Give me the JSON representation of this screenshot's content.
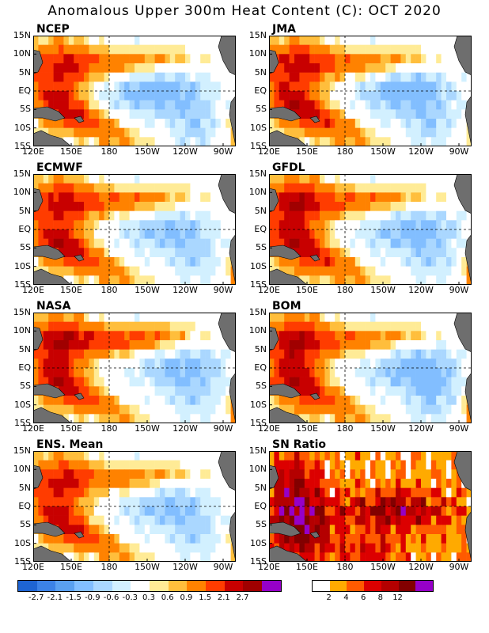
{
  "title": "Anomalous Upper 300m Heat Content (C): OCT 2020",
  "axes": {
    "y_ticks": [
      "15N",
      "10N",
      "5N",
      "EQ",
      "5S",
      "10S",
      "15S"
    ],
    "x_ticks": [
      "120E",
      "150E",
      "180",
      "150W",
      "120W",
      "90W"
    ],
    "lat_range": [
      -15,
      15
    ],
    "lon_range_east": [
      120,
      280
    ],
    "reference_lines": [
      "EQ",
      "180"
    ]
  },
  "colors": {
    "land": "#6e6e6e",
    "anomaly_scale": [
      "#1e64d2",
      "#3c82e6",
      "#5aa0f0",
      "#82beff",
      "#aad7ff",
      "#d2f0ff",
      "#ffffff",
      "#ffeb96",
      "#ffbe3c",
      "#ff8200",
      "#ff3c00",
      "#c80000",
      "#a00000",
      "#9600c8"
    ],
    "ratio_scale": [
      "#ffffff",
      "#ffaa00",
      "#ff5a00",
      "#dc0000",
      "#b40000",
      "#820000",
      "#9600c8"
    ]
  },
  "chart_data": {
    "type": "heatmap",
    "title": "Anomalous Upper 300m Heat Content (C): OCT 2020",
    "variable": "anomalous upper 300m heat content",
    "unit": "C",
    "grid": false,
    "panels": [
      {
        "name": "NCEP",
        "kind": "anomaly",
        "west_warm": 1.5,
        "north_band": 1.4,
        "south_band": 1.6,
        "east_cold": -1.3,
        "cold_center_lon": 215,
        "coast_warm": 1.0
      },
      {
        "name": "JMA",
        "kind": "anomaly",
        "west_warm": 1.7,
        "north_band": 1.4,
        "south_band": 1.7,
        "east_cold": -1.2,
        "cold_center_lon": 225,
        "coast_warm": 0.8
      },
      {
        "name": "ECMWF",
        "kind": "anomaly",
        "west_warm": 1.6,
        "north_band": 1.5,
        "south_band": 1.6,
        "east_cold": -1.0,
        "cold_center_lon": 225,
        "coast_warm": 1.4
      },
      {
        "name": "GFDL",
        "kind": "anomaly",
        "west_warm": 1.9,
        "north_band": 1.5,
        "south_band": 1.7,
        "east_cold": -1.1,
        "cold_center_lon": 230,
        "coast_warm": 1.4
      },
      {
        "name": "NASA",
        "kind": "anomaly",
        "west_warm": 1.8,
        "north_band": 1.7,
        "south_band": 1.4,
        "east_cold": -1.0,
        "cold_center_lon": 235,
        "coast_warm": 1.8
      },
      {
        "name": "BOM",
        "kind": "anomaly",
        "west_warm": 2.0,
        "north_band": 1.4,
        "south_band": 1.5,
        "east_cold": -1.2,
        "cold_center_lon": 235,
        "coast_warm": 1.8
      },
      {
        "name": "ENS. Mean",
        "kind": "anomaly",
        "west_warm": 1.6,
        "north_band": 1.3,
        "south_band": 1.5,
        "east_cold": -1.0,
        "cold_center_lon": 225,
        "coast_warm": 1.0
      },
      {
        "name": "SN Ratio",
        "kind": "ratio",
        "max": 14
      }
    ],
    "anomaly_colorbar": {
      "ticks": [
        "-2.7",
        "-2.1",
        "-1.5",
        "-0.9",
        "-0.6",
        "-0.3",
        "0.3",
        "0.6",
        "0.9",
        "1.5",
        "2.1",
        "2.7"
      ],
      "bounds": [
        -2.7,
        -2.1,
        -1.5,
        -0.9,
        -0.6,
        -0.3,
        0.3,
        0.6,
        0.9,
        1.5,
        2.1,
        2.7
      ]
    },
    "ratio_colorbar": {
      "ticks": [
        "2",
        "4",
        "6",
        "8",
        "12"
      ],
      "bounds": [
        2,
        4,
        6,
        8,
        10,
        12
      ]
    }
  }
}
